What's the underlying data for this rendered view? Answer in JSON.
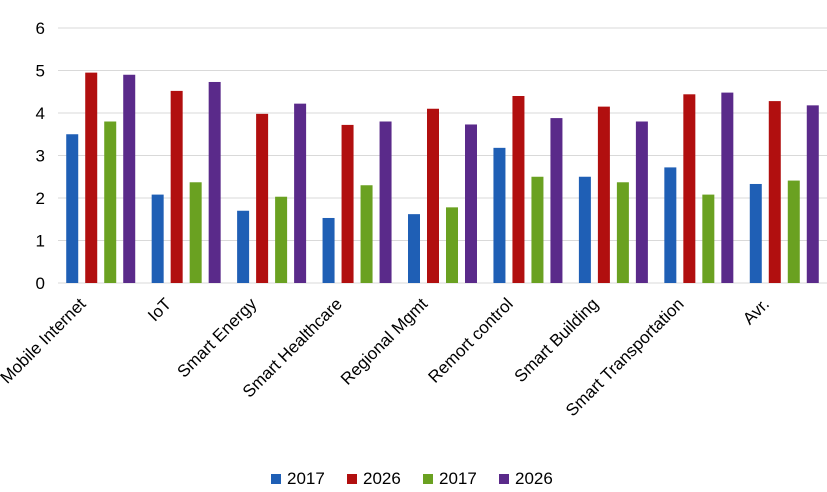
{
  "chart_data": {
    "type": "bar",
    "title": "",
    "xlabel": "",
    "ylabel": "",
    "ylim": [
      0,
      6
    ],
    "yticks": [
      "0",
      "1",
      "2",
      "3",
      "4",
      "5",
      "6"
    ],
    "grid": "horizontal",
    "legend_position": "bottom",
    "categories": [
      "Mobile Internet",
      "IoT",
      "Smart Energy",
      "Smart Healthcare",
      "Regional Mgmt",
      "Remort control",
      "Smart Building",
      "Smart Transportation",
      "Avr."
    ],
    "series": [
      {
        "name": "2017",
        "color": "#1f5fb5",
        "values": [
          3.5,
          2.08,
          1.7,
          1.53,
          1.62,
          3.18,
          2.5,
          2.72,
          2.33
        ]
      },
      {
        "name": "2026",
        "color": "#b10f0f",
        "values": [
          4.95,
          4.52,
          3.98,
          3.72,
          4.1,
          4.4,
          4.15,
          4.44,
          4.28
        ]
      },
      {
        "name": "2017",
        "color": "#6aa121",
        "values": [
          3.8,
          2.37,
          2.03,
          2.3,
          1.78,
          2.5,
          2.37,
          2.08,
          2.41
        ]
      },
      {
        "name": "2026",
        "color": "#5a2a8a",
        "values": [
          4.9,
          4.73,
          4.22,
          3.8,
          3.73,
          3.88,
          3.8,
          4.48,
          4.18
        ]
      }
    ]
  }
}
